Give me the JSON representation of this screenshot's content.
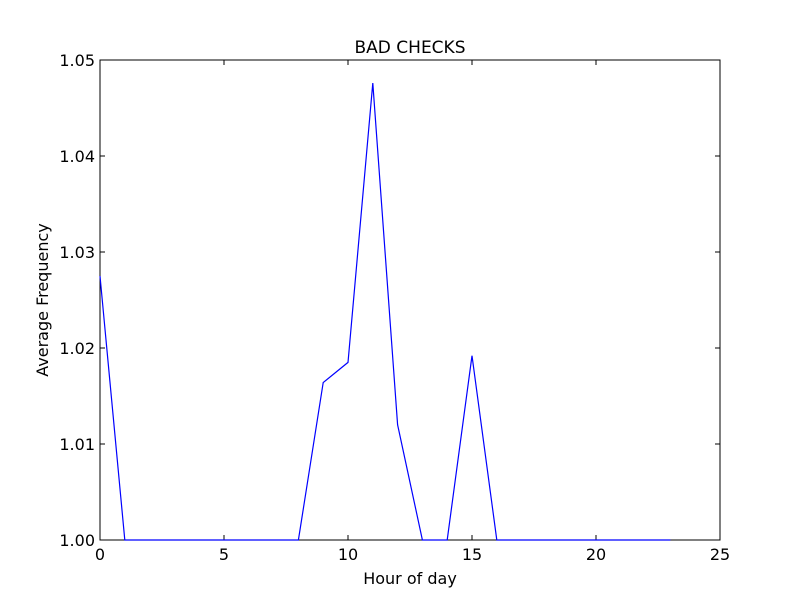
{
  "chart_data": {
    "type": "line",
    "title": "BAD CHECKS",
    "xlabel": "Hour of day",
    "ylabel": "Average Frequency",
    "xlim": [
      0,
      25
    ],
    "ylim": [
      1.0,
      1.05
    ],
    "xticks": [
      0,
      5,
      10,
      15,
      20,
      25
    ],
    "xtick_labels": [
      "0",
      "5",
      "10",
      "15",
      "20",
      "25"
    ],
    "yticks": [
      1.0,
      1.01,
      1.02,
      1.03,
      1.04,
      1.05
    ],
    "ytick_labels": [
      "1.00",
      "1.01",
      "1.02",
      "1.03",
      "1.04",
      "1.05"
    ],
    "grid": false,
    "legend": "none",
    "series": [
      {
        "color": "#0000ff",
        "x": [
          0,
          1,
          2,
          3,
          4,
          5,
          6,
          7,
          8,
          9,
          10,
          11,
          12,
          13,
          14,
          15,
          16,
          17,
          18,
          19,
          20,
          21,
          22,
          23
        ],
        "y": [
          1.0275,
          1.0,
          1.0,
          1.0,
          1.0,
          1.0,
          1.0,
          1.0,
          1.0,
          1.0164,
          1.0185,
          1.0476,
          1.012,
          1.0,
          1.0,
          1.0192,
          1.0,
          1.0,
          1.0,
          1.0,
          1.0,
          1.0,
          1.0,
          1.0
        ]
      }
    ]
  }
}
